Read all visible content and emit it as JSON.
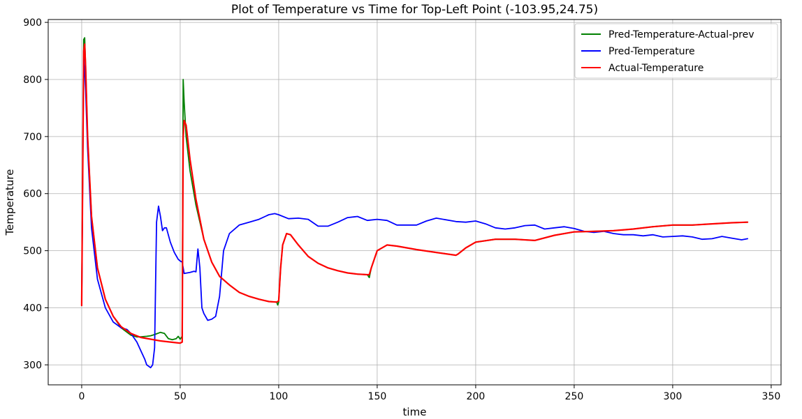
{
  "chart_data": {
    "type": "line",
    "title": "Plot of Temperature vs Time for Top-Left Point (-103.95,24.75)",
    "xlabel": "time",
    "ylabel": "Temperature",
    "xlim": [
      -17,
      355
    ],
    "ylim": [
      265,
      905
    ],
    "xticks": [
      0,
      50,
      100,
      150,
      200,
      250,
      300,
      350
    ],
    "yticks": [
      300,
      400,
      500,
      600,
      700,
      800,
      900
    ],
    "grid": true,
    "legend_position": "top-right",
    "series": [
      {
        "name": "Pred-Temperature-Actual-prev",
        "color": "#008000",
        "x": [
          0,
          1,
          1.5,
          2,
          3,
          5,
          8,
          12,
          16,
          20,
          25,
          28,
          30,
          33,
          35,
          37,
          40,
          42,
          44,
          46,
          48,
          49,
          50,
          51,
          51.5,
          52,
          53,
          55,
          58,
          62,
          66,
          70,
          75,
          80,
          85,
          90,
          95,
          99,
          99.5,
          100,
          101,
          102,
          104,
          106,
          110,
          115,
          120,
          125,
          130,
          135,
          140,
          145,
          146,
          147,
          150,
          155,
          160,
          170,
          180,
          190,
          191,
          195,
          200,
          210,
          220,
          230,
          240,
          250,
          260,
          270,
          280,
          290,
          300,
          310,
          320,
          330,
          338
        ],
        "y": [
          404,
          870,
          873,
          820,
          700,
          560,
          470,
          415,
          385,
          365,
          352,
          349,
          349,
          350,
          351,
          353,
          357,
          355,
          346,
          344,
          346,
          350,
          345,
          350,
          800,
          760,
          700,
          640,
          580,
          520,
          480,
          455,
          440,
          427,
          420,
          415,
          411,
          410,
          405,
          410,
          470,
          510,
          530,
          528,
          510,
          490,
          478,
          470,
          465,
          461,
          459,
          458,
          453,
          470,
          500,
          510,
          508,
          502,
          497,
          492,
          494,
          505,
          515,
          520,
          520,
          518,
          527,
          533,
          534,
          535,
          538,
          542,
          545,
          545,
          547,
          549,
          550
        ]
      },
      {
        "name": "Pred-Temperature",
        "color": "#0000ff",
        "x": [
          0,
          1,
          2,
          3,
          5,
          8,
          12,
          16,
          20,
          23,
          25,
          28,
          30,
          32,
          33,
          35,
          36,
          37,
          38,
          39,
          40,
          41,
          42,
          43,
          45,
          47,
          49,
          50,
          51,
          52,
          55,
          57,
          58,
          59,
          60,
          61,
          62,
          64,
          66,
          68,
          70,
          72,
          75,
          80,
          85,
          90,
          95,
          98,
          100,
          105,
          110,
          115,
          120,
          125,
          130,
          135,
          140,
          145,
          150,
          155,
          160,
          170,
          175,
          180,
          190,
          195,
          200,
          205,
          210,
          215,
          220,
          225,
          230,
          235,
          240,
          245,
          250,
          255,
          260,
          265,
          270,
          275,
          280,
          285,
          290,
          295,
          300,
          305,
          310,
          315,
          320,
          325,
          330,
          335,
          338
        ],
        "y": [
          404,
          840,
          780,
          680,
          540,
          450,
          400,
          375,
          365,
          362,
          355,
          340,
          325,
          310,
          300,
          295,
          300,
          330,
          550,
          578,
          560,
          535,
          540,
          540,
          515,
          497,
          485,
          482,
          480,
          460,
          462,
          464,
          463,
          503,
          470,
          400,
          390,
          378,
          380,
          385,
          420,
          500,
          530,
          545,
          550,
          555,
          563,
          565,
          563,
          556,
          557,
          555,
          543,
          543,
          550,
          558,
          560,
          553,
          555,
          553,
          545,
          545,
          552,
          557,
          551,
          550,
          552,
          547,
          540,
          538,
          540,
          544,
          545,
          538,
          540,
          542,
          539,
          534,
          532,
          534,
          530,
          528,
          528,
          526,
          528,
          524,
          525,
          526,
          524,
          520,
          521,
          525,
          522,
          519,
          521
        ]
      },
      {
        "name": "Actual-Temperature",
        "color": "#ff0000",
        "x": [
          0,
          1,
          1.5,
          2,
          3,
          5,
          8,
          12,
          16,
          20,
          25,
          30,
          35,
          40,
          45,
          50,
          51,
          51.5,
          52,
          53,
          55,
          58,
          62,
          66,
          70,
          75,
          80,
          85,
          90,
          95,
          99,
          100,
          101,
          102,
          104,
          106,
          110,
          115,
          120,
          125,
          130,
          135,
          140,
          145,
          146,
          147,
          150,
          155,
          160,
          170,
          180,
          190,
          191,
          195,
          200,
          210,
          220,
          230,
          240,
          250,
          260,
          270,
          280,
          290,
          300,
          310,
          320,
          330,
          338
        ],
        "y": [
          404,
          850,
          862,
          820,
          700,
          560,
          470,
          415,
          385,
          367,
          355,
          348,
          345,
          342,
          340,
          338,
          340,
          700,
          728,
          720,
          660,
          590,
          520,
          480,
          455,
          440,
          427,
          420,
          415,
          411,
          410,
          412,
          470,
          510,
          530,
          528,
          510,
          490,
          478,
          470,
          465,
          461,
          459,
          458,
          458,
          470,
          500,
          510,
          508,
          502,
          497,
          492,
          494,
          505,
          515,
          520,
          520,
          518,
          527,
          533,
          534,
          535,
          538,
          542,
          545,
          545,
          547,
          549,
          550
        ]
      }
    ]
  }
}
